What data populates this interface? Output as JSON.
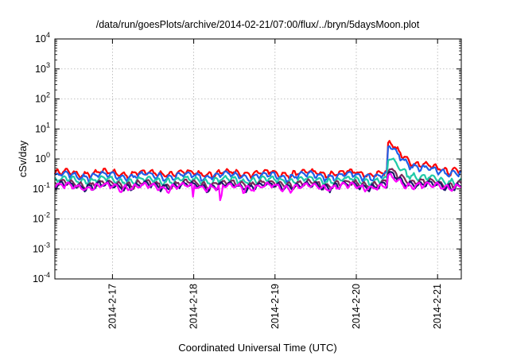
{
  "chart_data": {
    "type": "line",
    "title": "/data/run/goesPlots/archive/2014-02-21/07:00/flux/../bryn/5daysMoon.plot",
    "xlabel": "Coordinated Universal Time (UTC)",
    "ylabel": "cSv/day",
    "yscale": "log",
    "ylim": [
      0.0001,
      10000
    ],
    "y_ticks": [
      {
        "base": "10",
        "exp": "-4"
      },
      {
        "base": "10",
        "exp": "-3"
      },
      {
        "base": "10",
        "exp": "-2"
      },
      {
        "base": "10",
        "exp": "-1"
      },
      {
        "base": "10",
        "exp": "0"
      },
      {
        "base": "10",
        "exp": "1"
      },
      {
        "base": "10",
        "exp": "2"
      },
      {
        "base": "10",
        "exp": "3"
      },
      {
        "base": "10",
        "exp": "4"
      }
    ],
    "xlim": [
      2014.0216,
      2014.0221
    ],
    "x_domain": [
      "2014-02-16 07:00",
      "2014-02-21 07:00"
    ],
    "x_ticks": [
      {
        "label": "2014-2-17",
        "date": "2014-02-17"
      },
      {
        "label": "2014-2-18",
        "date": "2014-02-18"
      },
      {
        "label": "2014-2-19",
        "date": "2014-02-19"
      },
      {
        "label": "2014-2-20",
        "date": "2014-02-20"
      },
      {
        "label": "2014-2-21",
        "date": "2014-02-21"
      }
    ],
    "grid": true,
    "series": [
      {
        "color": "#ff0000",
        "base": 0.34,
        "peak": 4.0,
        "settle": 0.45
      },
      {
        "color": "#1f5fe8",
        "base": 0.28,
        "peak": 3.0,
        "settle": 0.35
      },
      {
        "color": "#1fc9a8",
        "base": 0.2,
        "peak": 1.2,
        "settle": 0.19
      },
      {
        "color": "#7a2a5a",
        "base": 0.15,
        "peak": 0.5,
        "settle": 0.15
      },
      {
        "color": "#1a1a6a",
        "base": 0.13,
        "peak": 0.35,
        "settle": 0.13
      },
      {
        "color": "#ff00ff",
        "base": 0.12,
        "peak": 0.28,
        "settle": 0.12
      }
    ],
    "event_date": "2014-02-20 09:00"
  }
}
